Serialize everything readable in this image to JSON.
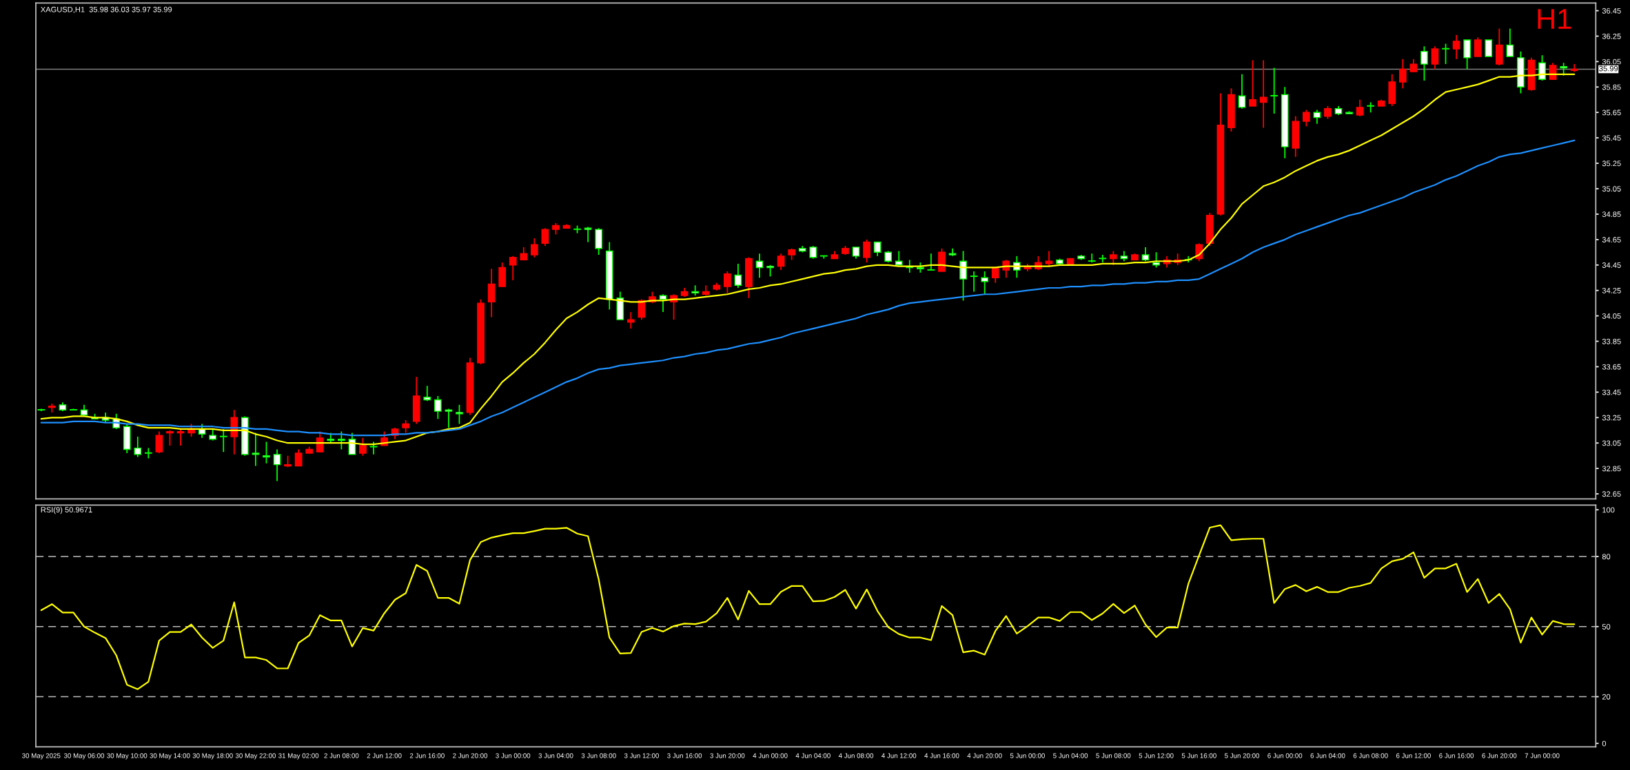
{
  "chart_data": [
    {
      "type": "candlestick",
      "title": "XAGUSD,H1  35.98 36.03 35.97 35.99",
      "annotations": [
        "H1"
      ],
      "categories": [
        null,
        null,
        null,
        null,
        null,
        null,
        null,
        null,
        null,
        null,
        null,
        null,
        null,
        null,
        null,
        null,
        null,
        null,
        null,
        null,
        null,
        null,
        null,
        null,
        null,
        null,
        null,
        null,
        null,
        null,
        null,
        null,
        null,
        null,
        null,
        null,
        null,
        null,
        null,
        null,
        null,
        null,
        null,
        null,
        null,
        null,
        null,
        null,
        null,
        null,
        null,
        null,
        null,
        null,
        null,
        null,
        null,
        null,
        null,
        null,
        null,
        null,
        null,
        null,
        null,
        null,
        null,
        null,
        null,
        null,
        null,
        null,
        null,
        null,
        null,
        null,
        null,
        null,
        null,
        null,
        null,
        null,
        null,
        null,
        null,
        null,
        null,
        null,
        null,
        null,
        null,
        null,
        null,
        null,
        null,
        null,
        null,
        null,
        null,
        null,
        null,
        null,
        null,
        null,
        null,
        null,
        null,
        null,
        null,
        null,
        null,
        null,
        null,
        null,
        null,
        null,
        null,
        null,
        null,
        null,
        null,
        null,
        null,
        null,
        null,
        null,
        null,
        null,
        null,
        null,
        null,
        null,
        null,
        null,
        null,
        null,
        null,
        null,
        null,
        null,
        null,
        null,
        null,
        null
      ],
      "ohlc": [
        [
          33.31,
          33.32,
          33.3,
          33.31
        ],
        [
          33.33,
          33.36,
          33.29,
          33.34
        ],
        [
          33.35,
          33.37,
          33.3,
          33.31
        ],
        [
          33.31,
          33.32,
          33.31,
          33.31
        ],
        [
          33.31,
          33.35,
          33.26,
          33.27
        ],
        [
          33.25,
          33.28,
          33.24,
          33.24
        ],
        [
          33.25,
          33.29,
          33.21,
          33.23
        ],
        [
          33.24,
          33.28,
          33.16,
          33.17
        ],
        [
          33.18,
          33.2,
          32.97,
          33.0
        ],
        [
          33.01,
          33.1,
          32.94,
          32.96
        ],
        [
          32.97,
          33.01,
          32.93,
          32.97
        ],
        [
          32.98,
          33.14,
          32.97,
          33.11
        ],
        [
          33.13,
          33.15,
          33.03,
          33.14
        ],
        [
          33.13,
          33.16,
          33.03,
          33.14
        ],
        [
          33.13,
          33.2,
          33.1,
          33.16
        ],
        [
          33.16,
          33.2,
          33.09,
          33.12
        ],
        [
          33.11,
          33.16,
          33.07,
          33.08
        ],
        [
          33.1,
          33.16,
          32.98,
          33.1
        ],
        [
          33.1,
          33.31,
          32.96,
          33.25
        ],
        [
          33.25,
          33.26,
          32.95,
          32.96
        ],
        [
          32.97,
          33.13,
          32.87,
          32.96
        ],
        [
          32.95,
          33.06,
          32.89,
          32.94
        ],
        [
          32.96,
          33.0,
          32.75,
          32.88
        ],
        [
          32.87,
          32.95,
          32.86,
          32.88
        ],
        [
          32.87,
          33.0,
          32.87,
          32.97
        ],
        [
          32.97,
          33.02,
          32.97,
          33.0
        ],
        [
          32.98,
          33.14,
          32.98,
          33.09
        ],
        [
          33.08,
          33.13,
          33.05,
          33.07
        ],
        [
          33.08,
          33.14,
          33.0,
          33.07
        ],
        [
          33.08,
          33.13,
          32.96,
          32.96
        ],
        [
          32.97,
          33.09,
          32.95,
          33.03
        ],
        [
          33.02,
          33.06,
          32.96,
          33.02
        ],
        [
          33.03,
          33.14,
          33.03,
          33.09
        ],
        [
          33.11,
          33.17,
          33.08,
          33.16
        ],
        [
          33.17,
          33.23,
          33.13,
          33.2
        ],
        [
          33.22,
          33.57,
          33.2,
          33.42
        ],
        [
          33.41,
          33.5,
          33.38,
          33.39
        ],
        [
          33.39,
          33.42,
          33.24,
          33.3
        ],
        [
          33.31,
          33.32,
          33.17,
          33.3
        ],
        [
          33.29,
          33.35,
          33.2,
          33.28
        ],
        [
          33.29,
          33.72,
          33.27,
          33.68
        ],
        [
          33.68,
          34.18,
          33.67,
          34.15
        ],
        [
          34.16,
          34.42,
          34.04,
          34.3
        ],
        [
          34.28,
          34.47,
          34.28,
          34.43
        ],
        [
          34.45,
          34.52,
          34.33,
          34.51
        ],
        [
          34.49,
          34.59,
          34.49,
          34.54
        ],
        [
          34.53,
          34.66,
          34.51,
          34.61
        ],
        [
          34.62,
          34.74,
          34.6,
          34.73
        ],
        [
          34.73,
          34.78,
          34.69,
          34.76
        ],
        [
          34.74,
          34.77,
          34.74,
          34.76
        ],
        [
          34.73,
          34.76,
          34.7,
          34.73
        ],
        [
          34.74,
          34.75,
          34.63,
          34.73
        ],
        [
          34.73,
          34.74,
          34.53,
          34.58
        ],
        [
          34.56,
          34.63,
          34.1,
          34.18
        ],
        [
          34.19,
          34.24,
          34.02,
          34.02
        ],
        [
          34.0,
          34.08,
          33.95,
          34.02
        ],
        [
          34.04,
          34.18,
          34.02,
          34.17
        ],
        [
          34.16,
          34.24,
          34.15,
          34.2
        ],
        [
          34.21,
          34.22,
          34.08,
          34.18
        ],
        [
          34.16,
          34.22,
          34.02,
          34.21
        ],
        [
          34.21,
          34.27,
          34.2,
          34.24
        ],
        [
          34.24,
          34.29,
          34.21,
          34.23
        ],
        [
          34.22,
          34.29,
          34.21,
          34.24
        ],
        [
          34.26,
          34.31,
          34.25,
          34.29
        ],
        [
          34.28,
          34.4,
          34.23,
          34.38
        ],
        [
          34.37,
          34.46,
          34.27,
          34.29
        ],
        [
          34.28,
          34.51,
          34.19,
          34.5
        ],
        [
          34.48,
          34.54,
          34.35,
          34.43
        ],
        [
          34.44,
          34.45,
          34.36,
          34.43
        ],
        [
          34.44,
          34.54,
          34.41,
          34.52
        ],
        [
          34.53,
          34.58,
          34.49,
          34.57
        ],
        [
          34.58,
          34.6,
          34.55,
          34.56
        ],
        [
          34.59,
          34.6,
          34.5,
          34.51
        ],
        [
          34.52,
          34.52,
          34.5,
          34.52
        ],
        [
          34.5,
          34.56,
          34.5,
          34.53
        ],
        [
          34.54,
          34.6,
          34.53,
          34.58
        ],
        [
          34.59,
          34.59,
          34.5,
          34.52
        ],
        [
          34.51,
          34.65,
          34.47,
          34.63
        ],
        [
          34.63,
          34.63,
          34.52,
          34.55
        ],
        [
          34.55,
          34.56,
          34.47,
          34.48
        ],
        [
          34.48,
          34.56,
          34.45,
          34.45
        ],
        [
          34.44,
          34.49,
          34.39,
          34.43
        ],
        [
          34.43,
          34.47,
          34.39,
          34.42
        ],
        [
          34.41,
          34.54,
          34.41,
          34.41
        ],
        [
          34.4,
          34.58,
          34.4,
          34.55
        ],
        [
          34.54,
          34.58,
          34.52,
          34.53
        ],
        [
          34.48,
          34.56,
          34.17,
          34.34
        ],
        [
          34.36,
          34.4,
          34.24,
          34.36
        ],
        [
          34.35,
          34.4,
          34.22,
          34.32
        ],
        [
          34.35,
          34.43,
          34.31,
          34.43
        ],
        [
          34.41,
          34.49,
          34.35,
          34.48
        ],
        [
          34.47,
          34.52,
          34.35,
          34.41
        ],
        [
          34.42,
          34.46,
          34.4,
          34.44
        ],
        [
          34.42,
          34.52,
          34.41,
          34.47
        ],
        [
          34.46,
          34.56,
          34.44,
          34.48
        ],
        [
          34.49,
          34.5,
          34.45,
          34.46
        ],
        [
          34.45,
          34.5,
          34.45,
          34.5
        ],
        [
          34.52,
          34.53,
          34.49,
          34.5
        ],
        [
          34.48,
          34.54,
          34.47,
          34.48
        ],
        [
          34.5,
          34.53,
          34.47,
          34.5
        ],
        [
          34.5,
          34.56,
          34.45,
          34.53
        ],
        [
          34.52,
          34.56,
          34.48,
          34.5
        ],
        [
          34.49,
          34.54,
          34.49,
          34.53
        ],
        [
          34.53,
          34.59,
          34.48,
          34.49
        ],
        [
          34.47,
          34.55,
          34.43,
          34.45
        ],
        [
          34.46,
          34.52,
          34.43,
          34.49
        ],
        [
          34.47,
          34.54,
          34.45,
          34.49
        ],
        [
          34.49,
          34.52,
          34.47,
          34.49
        ],
        [
          34.5,
          34.62,
          34.48,
          34.61
        ],
        [
          34.62,
          34.86,
          34.6,
          34.84
        ],
        [
          34.85,
          35.8,
          34.84,
          35.55
        ],
        [
          35.53,
          35.84,
          35.5,
          35.79
        ],
        [
          35.78,
          35.95,
          35.68,
          35.69
        ],
        [
          35.7,
          36.06,
          35.7,
          35.75
        ],
        [
          35.73,
          36.06,
          35.53,
          35.77
        ],
        [
          35.78,
          36.0,
          35.64,
          35.78
        ],
        [
          35.79,
          35.85,
          35.29,
          35.38
        ],
        [
          35.37,
          35.62,
          35.3,
          35.58
        ],
        [
          35.58,
          35.67,
          35.54,
          35.65
        ],
        [
          35.65,
          35.67,
          35.56,
          35.61
        ],
        [
          35.62,
          35.7,
          35.6,
          35.68
        ],
        [
          35.68,
          35.7,
          35.63,
          35.64
        ],
        [
          35.65,
          35.66,
          35.64,
          35.64
        ],
        [
          35.63,
          35.75,
          35.62,
          35.69
        ],
        [
          35.7,
          35.73,
          35.65,
          35.7
        ],
        [
          35.7,
          35.75,
          35.7,
          35.74
        ],
        [
          35.72,
          35.95,
          35.7,
          35.89
        ],
        [
          35.89,
          36.07,
          35.84,
          35.99
        ],
        [
          35.97,
          36.07,
          35.97,
          36.03
        ],
        [
          36.13,
          36.17,
          35.9,
          36.03
        ],
        [
          36.03,
          36.17,
          35.99,
          36.15
        ],
        [
          36.15,
          36.19,
          36.03,
          36.15
        ],
        [
          36.15,
          36.26,
          36.07,
          36.21
        ],
        [
          36.22,
          36.22,
          35.99,
          36.08
        ],
        [
          36.09,
          36.24,
          36.09,
          36.22
        ],
        [
          36.22,
          36.22,
          36.09,
          36.09
        ],
        [
          36.03,
          36.31,
          36.02,
          36.18
        ],
        [
          36.18,
          36.31,
          36.09,
          36.09
        ],
        [
          36.08,
          36.13,
          35.8,
          35.85
        ],
        [
          35.83,
          36.08,
          35.82,
          36.06
        ],
        [
          36.04,
          36.1,
          35.9,
          35.91
        ],
        [
          35.91,
          36.04,
          35.91,
          36.02
        ],
        [
          36.01,
          36.04,
          35.94,
          36.0
        ],
        [
          35.98,
          36.03,
          35.97,
          35.99
        ]
      ],
      "colors": [
        "#00ff00",
        "#ff0000",
        "#ffffff",
        "#00ff00",
        "#ffffff",
        "#ffffff",
        "#ffffff",
        "#ffffff",
        "#ffffff",
        "#ffffff",
        "#00ff00",
        "#ff0000",
        "#ff0000",
        "#ff0000",
        "#ff0000",
        "#ffffff",
        "#ffffff",
        "#00ff00",
        "#ff0000",
        "#ffffff",
        "#ffffff",
        "#ffffff",
        "#ffffff",
        "#ff0000",
        "#ff0000",
        "#ff0000",
        "#ff0000",
        "#ffffff",
        "#ffffff",
        "#ffffff",
        "#ff0000",
        "#00ff00",
        "#ff0000",
        "#ff0000",
        "#ff0000",
        "#ff0000",
        "#ffffff",
        "#ffffff",
        "#ffffff",
        "#ffffff",
        "#ff0000",
        "#ff0000",
        "#ff0000",
        "#ff0000",
        "#ff0000",
        "#ff0000",
        "#ff0000",
        "#ff0000",
        "#ff0000",
        "#ff0000",
        "#00ff00",
        "#ffffff",
        "#ffffff",
        "#ffffff",
        "#ffffff",
        "#ff0000",
        "#ff0000",
        "#ff0000",
        "#ffffff",
        "#ff0000",
        "#ff0000",
        "#ffffff",
        "#ff0000",
        "#ff0000",
        "#ff0000",
        "#ffffff",
        "#ff0000",
        "#ffffff",
        "#ffffff",
        "#ff0000",
        "#ff0000",
        "#ffffff",
        "#ffffff",
        "#00ff00",
        "#ff0000",
        "#ff0000",
        "#ffffff",
        "#ff0000",
        "#ffffff",
        "#ffffff",
        "#ffffff",
        "#ffffff",
        "#ffffff",
        "#00ff00",
        "#ff0000",
        "#ffffff",
        "#ffffff",
        "#00ff00",
        "#ffffff",
        "#ff0000",
        "#ff0000",
        "#ffffff",
        "#ff0000",
        "#ff0000",
        "#ff0000",
        "#ffffff",
        "#ff0000",
        "#ffffff",
        "#00ff00",
        "#00ff00",
        "#ff0000",
        "#ffffff",
        "#ff0000",
        "#ffffff",
        "#ffffff",
        "#ff0000",
        "#ff0000",
        "#00ff00",
        "#ff0000",
        "#ff0000",
        "#ff0000",
        "#ff0000",
        "#ffffff",
        "#ff0000",
        "#ff0000",
        "#00ff00",
        "#ffffff",
        "#ff0000",
        "#ff0000",
        "#ffffff",
        "#ff0000",
        "#ffffff",
        "#ffffff",
        "#ff0000",
        "#00ff00",
        "#ff0000",
        "#ff0000",
        "#ff0000",
        "#ff0000",
        "#ffffff",
        "#ff0000",
        "#00ff00",
        "#ff0000",
        "#ffffff",
        "#ff0000",
        "#ffffff",
        "#ff0000",
        "#ffffff",
        "#ffffff",
        "#ff0000",
        "#ffffff",
        "#ff0000",
        "#ffffff",
        "#ff0000"
      ],
      "series": [
        {
          "type": "line",
          "color": "#ffff00",
          "values": [
            33.24,
            33.25,
            33.25,
            33.26,
            33.26,
            33.25,
            33.25,
            33.24,
            33.22,
            33.19,
            33.17,
            33.17,
            33.17,
            33.16,
            33.16,
            33.16,
            33.16,
            33.15,
            33.15,
            33.15,
            33.12,
            33.1,
            33.07,
            33.05,
            33.05,
            33.05,
            33.05,
            33.05,
            33.05,
            33.05,
            33.04,
            33.04,
            33.05,
            33.06,
            33.07,
            33.1,
            33.13,
            33.14,
            33.16,
            33.17,
            33.21,
            33.32,
            33.42,
            33.53,
            33.6,
            33.68,
            33.75,
            33.84,
            33.94,
            34.03,
            34.08,
            34.14,
            34.19,
            34.18,
            34.17,
            34.16,
            34.16,
            34.17,
            34.17,
            34.18,
            34.18,
            34.19,
            34.2,
            34.21,
            34.22,
            34.24,
            34.26,
            34.27,
            34.29,
            34.3,
            34.32,
            34.34,
            34.36,
            34.38,
            34.39,
            34.41,
            34.42,
            34.44,
            34.45,
            34.45,
            34.44,
            34.44,
            34.44,
            34.45,
            34.45,
            34.44,
            34.43,
            34.43,
            34.43,
            34.43,
            34.44,
            34.44,
            34.44,
            34.44,
            34.44,
            34.45,
            34.45,
            34.45,
            34.45,
            34.46,
            34.46,
            34.46,
            34.47,
            34.47,
            34.48,
            34.48,
            34.48,
            34.49,
            34.53,
            34.62,
            34.73,
            34.82,
            34.93,
            35.0,
            35.07,
            35.1,
            35.14,
            35.19,
            35.23,
            35.27,
            35.3,
            35.32,
            35.35,
            35.39,
            35.43,
            35.47,
            35.52,
            35.57,
            35.62,
            35.68,
            35.75,
            35.81,
            35.83,
            35.85,
            35.87,
            35.9,
            35.93,
            35.93,
            35.94,
            35.94,
            35.95,
            35.95,
            35.95,
            35.95
          ]
        },
        {
          "type": "line",
          "color": "#1e90ff",
          "values": [
            33.21,
            33.21,
            33.21,
            33.22,
            33.22,
            33.22,
            33.21,
            33.21,
            33.2,
            33.2,
            33.19,
            33.19,
            33.19,
            33.18,
            33.18,
            33.18,
            33.18,
            33.17,
            33.17,
            33.17,
            33.16,
            33.16,
            33.15,
            33.14,
            33.14,
            33.13,
            33.13,
            33.12,
            33.12,
            33.11,
            33.11,
            33.11,
            33.11,
            33.12,
            33.12,
            33.13,
            33.13,
            33.14,
            33.15,
            33.16,
            33.19,
            33.22,
            33.26,
            33.29,
            33.33,
            33.37,
            33.41,
            33.45,
            33.49,
            33.53,
            33.56,
            33.6,
            33.63,
            33.64,
            33.66,
            33.67,
            33.68,
            33.69,
            33.7,
            33.72,
            33.73,
            33.75,
            33.76,
            33.78,
            33.79,
            33.81,
            33.83,
            33.84,
            33.86,
            33.88,
            33.91,
            33.93,
            33.95,
            33.97,
            33.99,
            34.01,
            34.03,
            34.06,
            34.08,
            34.1,
            34.13,
            34.15,
            34.16,
            34.17,
            34.18,
            34.19,
            34.2,
            34.21,
            34.22,
            34.22,
            34.23,
            34.24,
            34.25,
            34.26,
            34.27,
            34.27,
            34.28,
            34.28,
            34.29,
            34.29,
            34.3,
            34.3,
            34.31,
            34.31,
            34.32,
            34.32,
            34.33,
            34.33,
            34.34,
            34.38,
            34.42,
            34.46,
            34.5,
            34.55,
            34.59,
            34.62,
            34.65,
            34.69,
            34.72,
            34.75,
            34.78,
            34.81,
            34.84,
            34.86,
            34.89,
            34.92,
            34.95,
            34.98,
            35.02,
            35.05,
            35.08,
            35.12,
            35.15,
            35.19,
            35.23,
            35.26,
            35.3,
            35.32,
            35.33,
            35.35,
            35.37,
            35.39,
            35.41,
            35.43
          ]
        }
      ],
      "ref_lines": [
        {
          "axis": "y",
          "value": 35.99,
          "label": "35.99",
          "color": "#808080"
        }
      ],
      "ylim": [
        32.61,
        36.51
      ],
      "yticks": [
        32.65,
        32.85,
        33.05,
        33.25,
        33.45,
        33.65,
        33.85,
        34.05,
        34.25,
        34.45,
        34.65,
        34.85,
        35.05,
        35.25,
        35.45,
        35.65,
        35.85,
        36.05,
        36.25,
        36.45
      ],
      "tick_labels": "y"
    },
    {
      "type": "line",
      "title": "RSI(9) 50.9671",
      "categories": [
        "30 May 2025",
        null,
        null,
        null,
        "30 May 06:00",
        null,
        null,
        null,
        "30 May 10:00",
        null,
        null,
        null,
        "30 May 14:00",
        null,
        null,
        null,
        "30 May 18:00",
        null,
        null,
        null,
        "30 May 22:00",
        null,
        null,
        null,
        "31 May 02:00",
        null,
        null,
        null,
        "2 Jun 08:00",
        null,
        null,
        null,
        "2 Jun 12:00",
        null,
        null,
        null,
        "2 Jun 16:00",
        null,
        null,
        null,
        "2 Jun 20:00",
        null,
        null,
        null,
        "3 Jun 00:00",
        null,
        null,
        null,
        "3 Jun 04:00",
        null,
        null,
        null,
        "3 Jun 08:00",
        null,
        null,
        null,
        "3 Jun 12:00",
        null,
        null,
        null,
        "3 Jun 16:00",
        null,
        null,
        null,
        "3 Jun 20:00",
        null,
        null,
        null,
        "4 Jun 00:00",
        null,
        null,
        null,
        "4 Jun 04:00",
        null,
        null,
        null,
        "4 Jun 08:00",
        null,
        null,
        null,
        "4 Jun 12:00",
        null,
        null,
        null,
        "4 Jun 16:00",
        null,
        null,
        null,
        "4 Jun 20:00",
        null,
        null,
        null,
        "5 Jun 00:00",
        null,
        null,
        null,
        "5 Jun 04:00",
        null,
        null,
        null,
        "5 Jun 08:00",
        null,
        null,
        null,
        "5 Jun 12:00",
        null,
        null,
        null,
        "5 Jun 16:00",
        null,
        null,
        null,
        "5 Jun 20:00",
        null,
        null,
        null,
        "6 Jun 00:00",
        null,
        null,
        null,
        "6 Jun 04:00",
        null,
        null,
        null,
        "6 Jun 08:00",
        null,
        null,
        null,
        "6 Jun 12:00",
        null,
        null,
        null,
        "6 Jun 16:00",
        null,
        null,
        null,
        "6 Jun 20:00",
        null,
        null,
        null,
        "7 Jun 00:00",
        null,
        null,
        null
      ],
      "series": [
        {
          "color": "#ffff00",
          "values": [
            57.0,
            59.6,
            56.0,
            56.0,
            50.0,
            47.4,
            45.1,
            37.7,
            25.1,
            23.2,
            26.4,
            44.0,
            47.7,
            47.7,
            50.9,
            45.3,
            40.9,
            44.0,
            60.4,
            36.8,
            36.8,
            35.7,
            32.1,
            32.1,
            43.0,
            46.2,
            54.9,
            52.6,
            52.6,
            41.5,
            49.4,
            48.3,
            55.7,
            61.5,
            64.3,
            76.4,
            73.8,
            62.3,
            62.3,
            59.8,
            78.5,
            86.2,
            88.1,
            89.1,
            90.0,
            90.0,
            90.9,
            91.9,
            91.9,
            92.3,
            89.8,
            88.7,
            70.2,
            45.3,
            38.5,
            38.7,
            47.7,
            49.4,
            47.9,
            50.2,
            51.3,
            51.1,
            52.1,
            55.7,
            62.3,
            53.0,
            65.3,
            59.6,
            59.6,
            64.9,
            67.4,
            67.4,
            60.8,
            61.0,
            62.7,
            65.7,
            57.7,
            65.9,
            56.7,
            49.8,
            46.8,
            45.3,
            45.3,
            44.2,
            58.8,
            54.9,
            39.0,
            39.7,
            38.0,
            48.1,
            54.5,
            47.0,
            50.2,
            53.9,
            53.9,
            52.4,
            56.2,
            56.2,
            52.8,
            55.6,
            59.7,
            55.8,
            59.0,
            50.9,
            45.5,
            49.6,
            49.6,
            68.3,
            80.5,
            92.4,
            93.4,
            87.0,
            87.4,
            87.6,
            87.6,
            60.1,
            66.1,
            67.8,
            65.1,
            67.0,
            64.8,
            64.8,
            66.6,
            67.4,
            68.7,
            74.9,
            78.0,
            79.0,
            81.8,
            70.9,
            74.9,
            74.9,
            76.9,
            64.8,
            70.4,
            60.1,
            64.0,
            57.5,
            43.1,
            53.9,
            46.6,
            52.4,
            51.1,
            51.0
          ]
        }
      ],
      "ref_lines": [
        {
          "axis": "y",
          "value": 80,
          "color": "#c0c0c0",
          "line_style": "dashed"
        },
        {
          "axis": "y",
          "value": 50,
          "color": "#c0c0c0",
          "line_style": "dashed"
        },
        {
          "axis": "y",
          "value": 20,
          "color": "#c0c0c0",
          "line_style": "dashed"
        }
      ],
      "ylim": [
        -1.5,
        102
      ],
      "yticks": [
        0,
        20,
        50,
        80,
        100
      ]
    }
  ]
}
